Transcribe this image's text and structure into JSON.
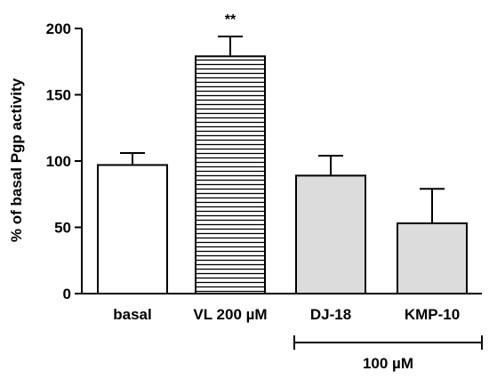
{
  "chart_data": {
    "type": "bar",
    "categories": [
      "basal",
      "VL 200 µM",
      "DJ-18",
      "KMP-10"
    ],
    "values": [
      97,
      179,
      89,
      53
    ],
    "errors": [
      9,
      15,
      15,
      26
    ],
    "fills": [
      "#ffffff",
      "hatched",
      "#dcdcdc",
      "#dcdcdc"
    ],
    "significance": [
      "",
      "**",
      "",
      ""
    ],
    "ylabel": "% of basal Pgp activity",
    "xlabel": "",
    "ylim": [
      0,
      200
    ],
    "yticks": [
      0,
      50,
      100,
      150,
      200
    ],
    "group_label": "100 µM",
    "group_categories": [
      "DJ-18",
      "KMP-10"
    ],
    "grid": false,
    "hatch_color": "#000000",
    "gray_fill": "#dcdcdc"
  }
}
